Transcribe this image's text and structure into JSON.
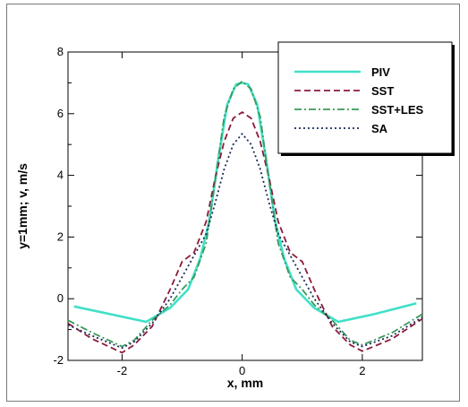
{
  "chart_data": {
    "type": "line",
    "title": "",
    "xlabel": "x, mm",
    "ylabel": "y=1mm;   v, m/s",
    "xlim": [
      -2.9,
      3.0
    ],
    "ylim": [
      -2,
      8
    ],
    "x_ticks": [
      -2,
      0,
      2
    ],
    "y_ticks": [
      -2,
      0,
      2,
      4,
      6,
      8
    ],
    "x_tick_labels": [
      "-2",
      "0",
      "2"
    ],
    "y_tick_labels": [
      "-2",
      "0",
      "2",
      "4",
      "6",
      "8"
    ],
    "grid": false,
    "legend_position": "top-right",
    "series": [
      {
        "name": "PIV",
        "color": "#40e0c8",
        "style": "solid",
        "x": [
          -2.8,
          -2.2,
          -1.6,
          -1.2,
          -0.9,
          -0.7,
          -0.55,
          -0.4,
          -0.25,
          -0.1,
          0.0,
          0.1,
          0.25,
          0.4,
          0.55,
          0.7,
          0.9,
          1.2,
          1.6,
          2.2,
          2.9
        ],
        "y": [
          -0.25,
          -0.5,
          -0.75,
          -0.3,
          0.3,
          1.3,
          2.5,
          4.5,
          6.3,
          6.95,
          7.0,
          6.95,
          6.3,
          4.5,
          2.5,
          1.3,
          0.3,
          -0.3,
          -0.75,
          -0.5,
          -0.15
        ]
      },
      {
        "name": "SST",
        "color": "#8b1a3a",
        "style": "dashed",
        "x": [
          -2.9,
          -2.5,
          -2.0,
          -1.8,
          -1.5,
          -1.2,
          -1.0,
          -0.8,
          -0.6,
          -0.45,
          -0.3,
          -0.15,
          0.0,
          0.15,
          0.3,
          0.45,
          0.6,
          0.8,
          1.0,
          1.2,
          1.5,
          1.8,
          2.0,
          2.5,
          3.0
        ],
        "y": [
          -0.8,
          -1.3,
          -1.75,
          -1.5,
          -0.9,
          0.3,
          1.2,
          1.5,
          2.5,
          3.9,
          5.1,
          5.85,
          6.05,
          5.85,
          5.1,
          3.9,
          2.5,
          1.5,
          1.2,
          0.3,
          -0.9,
          -1.5,
          -1.7,
          -1.3,
          -0.65
        ]
      },
      {
        "name": "SST+LES",
        "color": "#3a9a5a",
        "style": "dashdot",
        "x": [
          -2.9,
          -2.5,
          -2.0,
          -1.8,
          -1.5,
          -1.2,
          -1.0,
          -0.8,
          -0.6,
          -0.45,
          -0.3,
          -0.15,
          0.0,
          0.15,
          0.3,
          0.45,
          0.6,
          0.8,
          1.0,
          1.2,
          1.5,
          1.8,
          2.0,
          2.5,
          3.0
        ],
        "y": [
          -0.7,
          -1.1,
          -1.55,
          -1.35,
          -0.7,
          -0.2,
          0.3,
          0.7,
          1.8,
          3.8,
          5.9,
          6.8,
          7.05,
          6.8,
          5.9,
          3.8,
          1.8,
          0.7,
          0.3,
          -0.2,
          -0.7,
          -1.35,
          -1.5,
          -1.1,
          -0.5
        ]
      },
      {
        "name": "SA",
        "color": "#1a2a5a",
        "style": "dotted",
        "x": [
          -2.9,
          -2.5,
          -2.0,
          -1.8,
          -1.5,
          -1.2,
          -1.0,
          -0.8,
          -0.6,
          -0.45,
          -0.3,
          -0.15,
          0.0,
          0.15,
          0.3,
          0.45,
          0.6,
          0.8,
          1.0,
          1.2,
          1.5,
          1.8,
          2.0,
          2.5,
          3.0
        ],
        "y": [
          -0.85,
          -1.2,
          -1.6,
          -1.4,
          -0.8,
          0.0,
          0.7,
          1.4,
          2.1,
          3.1,
          4.2,
          5.0,
          5.35,
          5.0,
          4.2,
          3.1,
          2.1,
          1.4,
          0.7,
          0.0,
          -0.8,
          -1.4,
          -1.55,
          -1.2,
          -0.6
        ]
      }
    ]
  }
}
